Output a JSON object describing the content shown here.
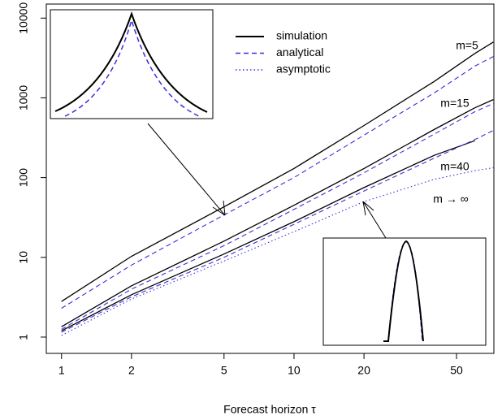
{
  "chart_data": {
    "type": "line",
    "x_label": "Forecast horizon τ",
    "x": [
      1,
      2,
      5,
      10,
      20,
      40,
      60,
      72
    ],
    "xlim": [
      0.86,
      72.4
    ],
    "ylim": [
      0.625,
      15000
    ],
    "xticks": [
      1,
      2,
      5,
      10,
      20,
      50
    ],
    "yticks": [
      1,
      10,
      100,
      1000,
      10000
    ],
    "log_x": true,
    "log_y": true,
    "legend": [
      {
        "name": "simulation",
        "color": "#000000",
        "dash": "solid"
      },
      {
        "name": "analytical",
        "color": "#3b2fd9",
        "dash": "dashed"
      },
      {
        "name": "asymptotic",
        "color": "#3b2fd9",
        "dash": "dotted"
      }
    ],
    "curves": [
      {
        "label": "m=5",
        "lines": [
          {
            "style": 0,
            "values": [
              2.8,
              10.3,
              43,
              130,
              450,
              1600,
              3600,
              5000
            ]
          },
          {
            "style": 1,
            "values": [
              2.3,
              8,
              34,
              100,
              340,
              1150,
              2500,
              3300
            ]
          }
        ]
      },
      {
        "label": "m=15",
        "lines": [
          {
            "style": 0,
            "values": [
              1.35,
              4.4,
              16,
              45,
              130,
              400,
              750,
              950
            ]
          },
          {
            "style": 1,
            "values": [
              1.25,
              4,
              14,
              40,
              115,
              350,
              670,
              850
            ]
          }
        ]
      },
      {
        "label": "m=40",
        "lines": [
          {
            "style": 0,
            "values": [
              1.2,
              3.4,
              11,
              28,
              75,
              190,
              290,
              null
            ]
          },
          {
            "style": 1,
            "values": [
              1.15,
              3.2,
              10,
              26,
              68,
              175,
              300,
              390
            ]
          }
        ]
      },
      {
        "label": "m → ∞",
        "lines": [
          {
            "style": 2,
            "values": [
              1.05,
              3.0,
              9,
              21,
              50,
              95,
              122,
              133
            ]
          }
        ]
      }
    ]
  }
}
